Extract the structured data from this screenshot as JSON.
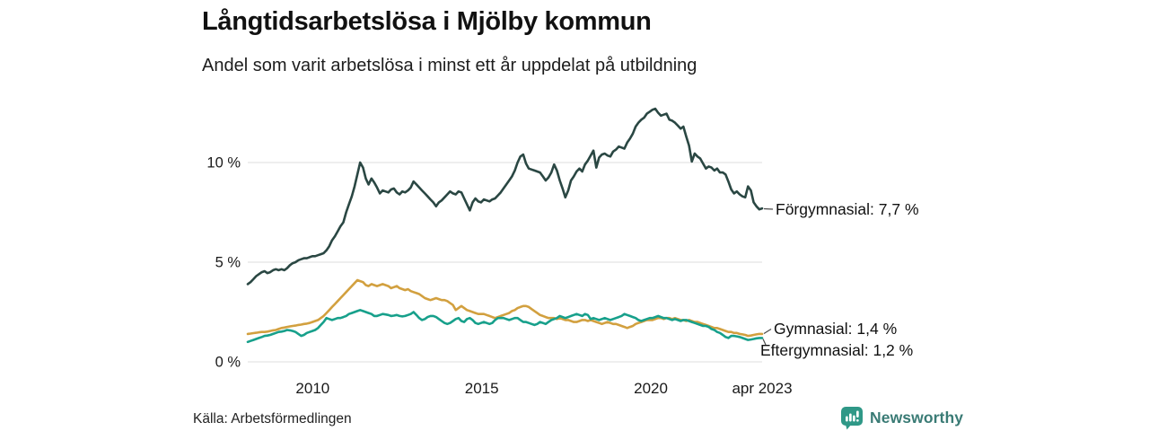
{
  "chart_data": {
    "type": "line",
    "title": "Långtidsarbetslösa i Mjölby kommun",
    "subtitle": "Andel som varit arbetslösa i minst ett år uppdelat på utbildning",
    "source": "Källa: Arbetsförmedlingen",
    "xlabel": "",
    "ylabel": "",
    "xlim": [
      2008.08,
      2023.29
    ],
    "ylim": [
      0,
      13.2
    ],
    "grid": "horizontal-only",
    "gridline_color": "#dcdcdc",
    "legend_position": "right-end-labels",
    "yticks": [
      {
        "value": 0,
        "label": "0 %"
      },
      {
        "value": 5,
        "label": "5 %"
      },
      {
        "value": 10,
        "label": "10 %"
      }
    ],
    "xticks": [
      {
        "value": 2010,
        "label": "2010"
      },
      {
        "value": 2015,
        "label": "2015"
      },
      {
        "value": 2020,
        "label": "2020"
      },
      {
        "value": 2023.29,
        "label": "apr 2023"
      }
    ],
    "series": [
      {
        "id": "forgymnasial",
        "name": "Förgymnasial",
        "end_label": "Förgymnasial: 7,7 %",
        "end_value": "7,7 %",
        "color": "#2a4743",
        "x_start": 2008.08,
        "x_end": 2023.29,
        "values": [
          3.9,
          4.0,
          4.15,
          4.3,
          4.4,
          4.5,
          4.55,
          4.45,
          4.5,
          4.6,
          4.65,
          4.6,
          4.65,
          4.6,
          4.7,
          4.85,
          4.95,
          5.0,
          5.1,
          5.15,
          5.2,
          5.2,
          5.25,
          5.3,
          5.3,
          5.35,
          5.4,
          5.45,
          5.6,
          5.8,
          6.1,
          6.3,
          6.55,
          6.8,
          7.0,
          7.5,
          7.9,
          8.3,
          8.8,
          9.4,
          10.0,
          9.75,
          9.2,
          8.9,
          9.2,
          9.0,
          8.75,
          8.45,
          8.6,
          8.55,
          8.5,
          8.65,
          8.7,
          8.5,
          8.4,
          8.55,
          8.5,
          8.6,
          8.75,
          9.05,
          8.9,
          8.75,
          8.6,
          8.45,
          8.3,
          8.15,
          8.0,
          7.8,
          8.0,
          8.1,
          8.25,
          8.4,
          8.55,
          8.45,
          8.4,
          8.55,
          8.5,
          8.2,
          7.9,
          7.6,
          8.0,
          8.2,
          8.05,
          8.0,
          8.15,
          8.1,
          8.05,
          8.15,
          8.2,
          8.35,
          8.5,
          8.7,
          8.9,
          9.1,
          9.3,
          9.6,
          10.0,
          10.3,
          10.4,
          9.95,
          9.7,
          9.65,
          9.6,
          9.55,
          9.5,
          9.3,
          9.1,
          9.25,
          9.5,
          9.9,
          9.6,
          9.1,
          8.7,
          8.25,
          8.6,
          9.1,
          9.3,
          9.55,
          9.7,
          9.55,
          9.9,
          10.1,
          10.35,
          10.6,
          9.75,
          10.25,
          10.4,
          10.45,
          10.35,
          10.3,
          10.55,
          10.65,
          10.8,
          10.75,
          10.7,
          11.0,
          11.2,
          11.45,
          11.8,
          12.0,
          12.15,
          12.25,
          12.45,
          12.55,
          12.65,
          12.7,
          12.5,
          12.35,
          12.4,
          12.45,
          12.15,
          12.1,
          12.0,
          11.85,
          11.7,
          11.8,
          11.3,
          10.85,
          10.05,
          10.45,
          10.3,
          10.2,
          9.95,
          9.7,
          9.8,
          9.75,
          9.6,
          9.7,
          9.5,
          9.5,
          9.4,
          9.05,
          8.65,
          8.45,
          8.55,
          8.4,
          8.3,
          8.25,
          8.8,
          8.6,
          8.0,
          7.8,
          7.65,
          7.7
        ]
      },
      {
        "id": "gymnasial",
        "name": "Gymnasial",
        "end_label": "Gymnasial: 1,4 %",
        "end_value": "1,4 %",
        "color": "#d2a03f",
        "x_start": 2008.08,
        "x_end": 2023.29,
        "values": [
          1.4,
          1.42,
          1.44,
          1.46,
          1.48,
          1.5,
          1.5,
          1.52,
          1.55,
          1.58,
          1.6,
          1.65,
          1.7,
          1.72,
          1.75,
          1.78,
          1.8,
          1.82,
          1.85,
          1.87,
          1.9,
          1.92,
          1.95,
          2.0,
          2.05,
          2.1,
          2.2,
          2.3,
          2.45,
          2.6,
          2.75,
          2.9,
          3.05,
          3.2,
          3.35,
          3.5,
          3.65,
          3.8,
          3.95,
          4.1,
          4.05,
          4.0,
          3.85,
          3.8,
          3.9,
          3.85,
          3.8,
          3.85,
          3.9,
          3.85,
          3.8,
          3.7,
          3.75,
          3.8,
          3.7,
          3.65,
          3.6,
          3.65,
          3.55,
          3.5,
          3.45,
          3.4,
          3.3,
          3.2,
          3.15,
          3.1,
          3.15,
          3.2,
          3.15,
          3.1,
          3.1,
          3.05,
          2.95,
          2.85,
          2.6,
          2.7,
          2.8,
          2.7,
          2.6,
          2.55,
          2.5,
          2.45,
          2.4,
          2.4,
          2.4,
          2.35,
          2.3,
          2.25,
          2.2,
          2.25,
          2.3,
          2.35,
          2.4,
          2.45,
          2.55,
          2.6,
          2.7,
          2.75,
          2.8,
          2.8,
          2.75,
          2.65,
          2.55,
          2.45,
          2.35,
          2.3,
          2.25,
          2.2,
          2.2,
          2.2,
          2.15,
          2.2,
          2.15,
          2.1,
          2.1,
          2.05,
          2.0,
          2.0,
          2.05,
          2.1,
          2.1,
          2.05,
          2.1,
          2.05,
          2.0,
          1.95,
          1.9,
          1.95,
          2.0,
          1.95,
          1.9,
          1.9,
          1.85,
          1.8,
          1.75,
          1.7,
          1.75,
          1.8,
          1.9,
          1.95,
          2.0,
          2.05,
          2.1,
          2.1,
          2.1,
          2.15,
          2.2,
          2.2,
          2.15,
          2.2,
          2.2,
          2.15,
          2.2,
          2.15,
          2.1,
          2.1,
          2.05,
          2.1,
          2.05,
          2.0,
          2.0,
          1.95,
          1.9,
          1.85,
          1.8,
          1.75,
          1.7,
          1.7,
          1.65,
          1.6,
          1.55,
          1.5,
          1.5,
          1.45,
          1.45,
          1.4,
          1.38,
          1.35,
          1.3,
          1.32,
          1.35,
          1.38,
          1.4,
          1.4
        ]
      },
      {
        "id": "eftergymnasial",
        "name": "Eftergymnasial",
        "end_label": "Eftergymnasial: 1,2 %",
        "end_value": "1,2 %",
        "color": "#17a08b",
        "x_start": 2008.08,
        "x_end": 2023.29,
        "values": [
          1.0,
          1.05,
          1.1,
          1.15,
          1.2,
          1.25,
          1.3,
          1.32,
          1.35,
          1.4,
          1.45,
          1.5,
          1.52,
          1.55,
          1.6,
          1.58,
          1.55,
          1.5,
          1.4,
          1.3,
          1.35,
          1.45,
          1.5,
          1.55,
          1.6,
          1.7,
          1.85,
          2.0,
          2.2,
          2.15,
          2.1,
          2.15,
          2.2,
          2.2,
          2.25,
          2.3,
          2.4,
          2.45,
          2.5,
          2.55,
          2.6,
          2.55,
          2.5,
          2.45,
          2.4,
          2.3,
          2.3,
          2.35,
          2.4,
          2.38,
          2.35,
          2.3,
          2.32,
          2.35,
          2.3,
          2.28,
          2.3,
          2.35,
          2.4,
          2.5,
          2.35,
          2.2,
          2.1,
          2.15,
          2.25,
          2.3,
          2.3,
          2.25,
          2.15,
          2.05,
          1.95,
          1.9,
          1.95,
          2.05,
          2.15,
          2.2,
          2.05,
          2.0,
          2.15,
          2.2,
          2.1,
          1.95,
          1.9,
          1.95,
          2.0,
          1.95,
          1.9,
          1.95,
          2.1,
          2.2,
          2.2,
          2.2,
          2.15,
          2.1,
          2.15,
          2.2,
          2.2,
          2.1,
          2.0,
          2.0,
          1.95,
          1.9,
          1.85,
          1.9,
          2.0,
          1.95,
          1.9,
          2.0,
          2.1,
          2.15,
          2.2,
          2.3,
          2.25,
          2.2,
          2.25,
          2.3,
          2.35,
          2.4,
          2.35,
          2.3,
          2.4,
          2.35,
          2.15,
          2.2,
          2.15,
          2.1,
          2.15,
          2.2,
          2.15,
          2.1,
          2.15,
          2.2,
          2.25,
          2.3,
          2.4,
          2.35,
          2.3,
          2.25,
          2.2,
          2.1,
          2.05,
          2.1,
          2.15,
          2.2,
          2.2,
          2.25,
          2.3,
          2.25,
          2.2,
          2.2,
          2.15,
          2.1,
          2.15,
          2.1,
          2.05,
          2.1,
          2.1,
          2.05,
          2.0,
          1.95,
          1.9,
          1.85,
          1.8,
          1.8,
          1.75,
          1.65,
          1.6,
          1.5,
          1.45,
          1.35,
          1.25,
          1.2,
          1.3,
          1.3,
          1.28,
          1.25,
          1.2,
          1.15,
          1.1,
          1.12,
          1.15,
          1.18,
          1.2,
          1.2
        ]
      }
    ]
  },
  "branding": {
    "logo_text": "Newsworthy",
    "logo_icon": "newsworthy-chart-bubble-icon",
    "icon_color": "#2f9887",
    "text_color": "#3a7b75"
  },
  "style": {
    "accent_dark": "#2a4743",
    "accent_gold": "#d2a03f",
    "accent_teal": "#17a08b",
    "gridline": "#dcdcdc",
    "text": "#1a1a1a"
  }
}
